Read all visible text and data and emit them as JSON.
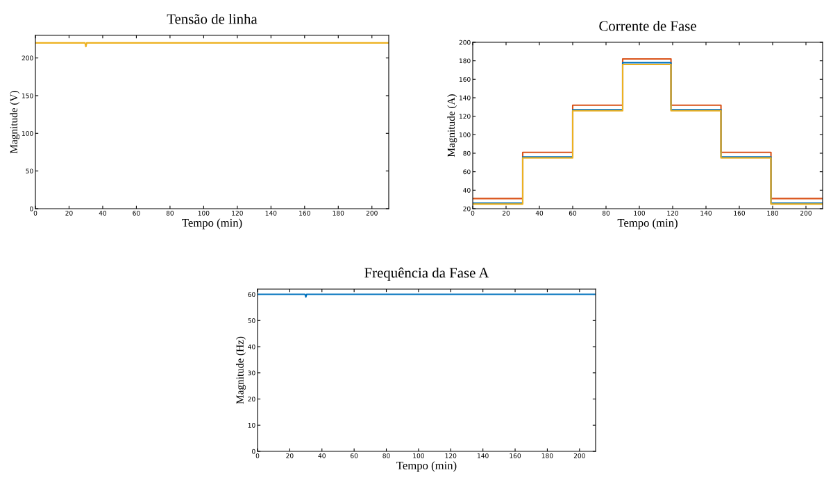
{
  "chart_data": [
    {
      "type": "line",
      "title": "Tensão de linha",
      "xlabel": "Tempo (min)",
      "ylabel": "Magnitude (V)",
      "xlim": [
        0,
        210
      ],
      "ylim": [
        0,
        230
      ],
      "xticks": [
        0,
        20,
        40,
        60,
        80,
        100,
        120,
        140,
        160,
        180,
        200
      ],
      "yticks": [
        0,
        50,
        100,
        150,
        200
      ],
      "grid": false,
      "legend": false,
      "series": [
        {
          "color": "#edb120",
          "x": [
            0,
            29.5,
            30,
            30.5,
            210
          ],
          "values": [
            220,
            220,
            215,
            220,
            220
          ]
        }
      ]
    },
    {
      "type": "step",
      "title": "Corrente de Fase",
      "xlabel": "Tempo (min)",
      "ylabel": "Magnitude (A)",
      "xlim": [
        0,
        210
      ],
      "ylim": [
        20,
        200
      ],
      "xticks": [
        0,
        20,
        40,
        60,
        80,
        100,
        120,
        140,
        160,
        180,
        200
      ],
      "yticks": [
        20,
        40,
        60,
        80,
        100,
        120,
        140,
        160,
        180,
        200
      ],
      "grid": false,
      "legend": false,
      "x": [
        0,
        30,
        60,
        90,
        119,
        149,
        179,
        210
      ],
      "series": [
        {
          "color": "#d95319",
          "values": [
            31,
            81,
            132,
            182,
            132,
            81,
            31,
            31
          ]
        },
        {
          "color": "#0072bd",
          "values": [
            26,
            76,
            127,
            178,
            127,
            76,
            26,
            26
          ]
        },
        {
          "color": "#edb120",
          "values": [
            25,
            75,
            126,
            176,
            126,
            75,
            25,
            25
          ]
        }
      ]
    },
    {
      "type": "line",
      "title": "Frequência da Fase A",
      "xlabel": "Tempo (min)",
      "ylabel": "Magnitude (Hz)",
      "xlim": [
        0,
        210
      ],
      "ylim": [
        0,
        62
      ],
      "xticks": [
        0,
        20,
        40,
        60,
        80,
        100,
        120,
        140,
        160,
        180,
        200
      ],
      "yticks": [
        0,
        10,
        20,
        30,
        40,
        50,
        60
      ],
      "grid": false,
      "legend": false,
      "series": [
        {
          "color": "#0072bd",
          "x": [
            0,
            29.5,
            30,
            30.5,
            210
          ],
          "values": [
            60,
            60,
            59,
            60,
            60
          ]
        }
      ]
    }
  ]
}
